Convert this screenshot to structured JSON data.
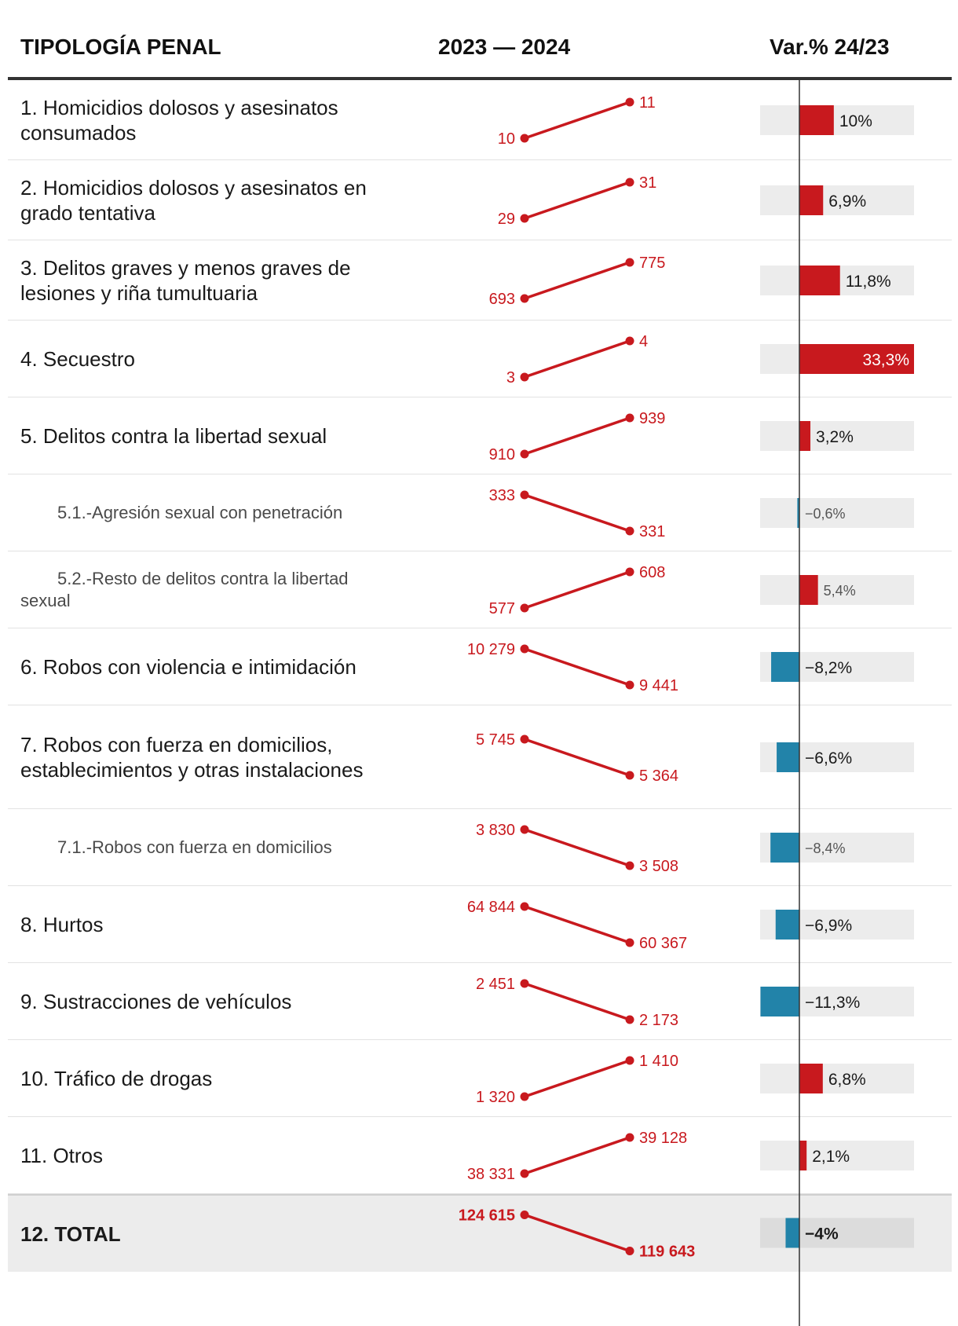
{
  "header": {
    "col1": "TIPOLOGÍA PENAL",
    "col2": "2023 — 2024",
    "col3": "Var.% 24/23"
  },
  "colors": {
    "increase": "#c8191e",
    "decrease": "#2283a9",
    "slope": "#c8191e",
    "bar_track": "#ececec"
  },
  "chart_data": {
    "type": "table",
    "variation_range": [
      -11.3,
      33.3
    ],
    "rows": [
      {
        "label": "1. Homicidios dolosos y asesinatos consumados",
        "level": 0,
        "v2023": 10,
        "v2024": 11,
        "v2023_label": "10",
        "v2024_label": "11",
        "var": 10.0,
        "var_label": "10%"
      },
      {
        "label": "2. Homicidios dolosos y asesinatos en grado tentativa",
        "level": 0,
        "v2023": 29,
        "v2024": 31,
        "v2023_label": "29",
        "v2024_label": "31",
        "var": 6.9,
        "var_label": "6,9%"
      },
      {
        "label": "3. Delitos graves y menos graves de lesiones y riña tumultuaria",
        "level": 0,
        "v2023": 693,
        "v2024": 775,
        "v2023_label": "693",
        "v2024_label": "775",
        "var": 11.8,
        "var_label": "11,8%"
      },
      {
        "label": "4. Secuestro",
        "level": 0,
        "v2023": 3,
        "v2024": 4,
        "v2023_label": "3",
        "v2024_label": "4",
        "var": 33.3,
        "var_label": "33,3%"
      },
      {
        "label": "5. Delitos contra la libertad sexual",
        "level": 0,
        "v2023": 910,
        "v2024": 939,
        "v2023_label": "910",
        "v2024_label": "939",
        "var": 3.2,
        "var_label": "3,2%"
      },
      {
        "label": "5.1.-Agresión sexual con penetración",
        "level": 1,
        "v2023": 333,
        "v2024": 331,
        "v2023_label": "333",
        "v2024_label": "331",
        "var": -0.6,
        "var_label": "−0,6%"
      },
      {
        "label": "5.2.-Resto de delitos contra la libertad sexual",
        "level": 1,
        "v2023": 577,
        "v2024": 608,
        "v2023_label": "577",
        "v2024_label": "608",
        "var": 5.4,
        "var_label": "5,4%"
      },
      {
        "label": "6. Robos con violencia e intimidación",
        "level": 0,
        "v2023": 10279,
        "v2024": 9441,
        "v2023_label": "10 279",
        "v2024_label": "9 441",
        "var": -8.2,
        "var_label": "−8,2%"
      },
      {
        "label": "7. Robos con fuerza en domicilios, establecimientos y otras instalaciones",
        "level": 0,
        "v2023": 5745,
        "v2024": 5364,
        "v2023_label": "5 745",
        "v2024_label": "5 364",
        "var": -6.6,
        "var_label": "−6,6%"
      },
      {
        "label": "7.1.-Robos con fuerza en domicilios",
        "level": 1,
        "v2023": 3830,
        "v2024": 3508,
        "v2023_label": "3 830",
        "v2024_label": "3 508",
        "var": -8.4,
        "var_label": "−8,4%"
      },
      {
        "label": "8. Hurtos",
        "level": 0,
        "v2023": 64844,
        "v2024": 60367,
        "v2023_label": "64 844",
        "v2024_label": "60 367",
        "var": -6.9,
        "var_label": "−6,9%"
      },
      {
        "label": "9. Sustracciones de vehículos",
        "level": 0,
        "v2023": 2451,
        "v2024": 2173,
        "v2023_label": "2 451",
        "v2024_label": "2 173",
        "var": -11.3,
        "var_label": "−11,3%"
      },
      {
        "label": "10. Tráfico de drogas",
        "level": 0,
        "v2023": 1320,
        "v2024": 1410,
        "v2023_label": "1 320",
        "v2024_label": "1 410",
        "var": 6.8,
        "var_label": "6,8%"
      },
      {
        "label": "11. Otros",
        "level": 0,
        "v2023": 38331,
        "v2024": 39128,
        "v2023_label": "38 331",
        "v2024_label": "39 128",
        "var": 2.1,
        "var_label": "2,1%"
      },
      {
        "label": "12. TOTAL",
        "level": 0,
        "total": true,
        "v2023": 124615,
        "v2024": 119643,
        "v2023_label": "124 615",
        "v2024_label": "119 643",
        "var": -4.0,
        "var_label": "−4%"
      }
    ]
  }
}
